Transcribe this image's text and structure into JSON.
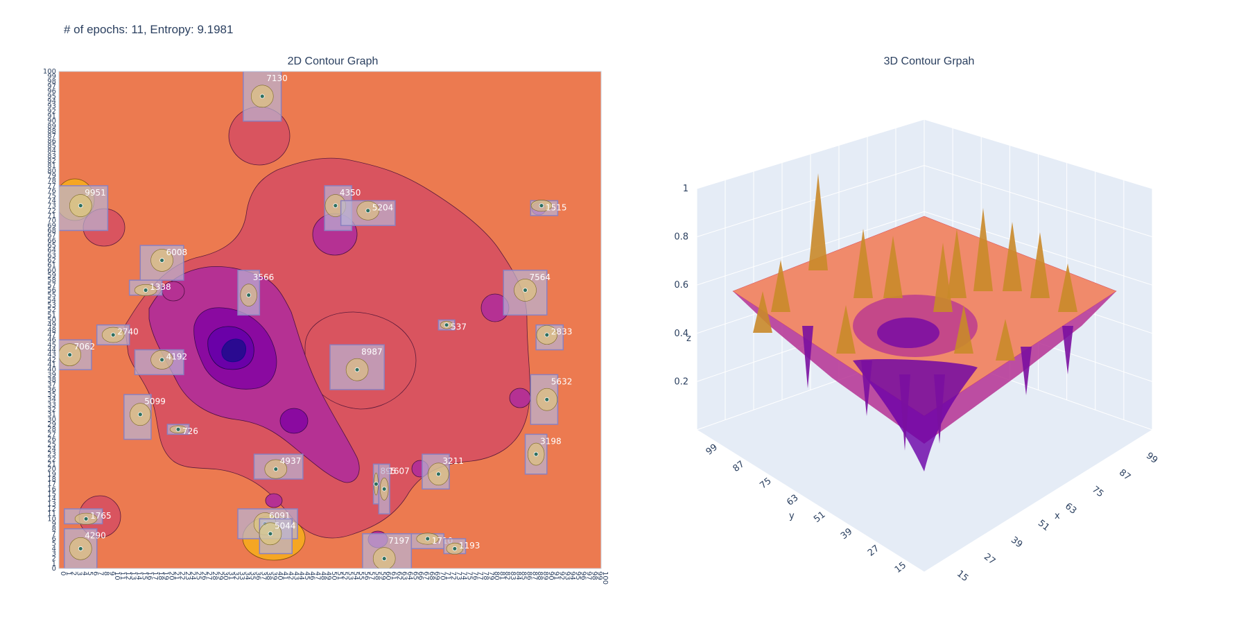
{
  "header": {
    "title": "# of epochs: 11, Entropy: 9.1981"
  },
  "colors": {
    "background": "#ffffff",
    "plot_orange": "#ec7a50",
    "mid_pink": "#d9545f",
    "magenta": "#a9239a",
    "deep_purple": "#6a00a8",
    "navy": "#0d0887",
    "box_fill": "#b9b5d6",
    "box_edge": "#8a80c0",
    "surface_peach": "#f08a6b",
    "scene_bg": "#e5ecf6"
  },
  "chart_data": [
    {
      "type": "heatmap",
      "subtype": "contour",
      "title": "2D Contour Graph",
      "xlim": [
        0,
        100
      ],
      "ylim": [
        0,
        100
      ],
      "x_ticks": [
        0,
        1,
        2,
        3,
        4,
        5,
        6,
        7,
        8,
        9,
        10,
        11,
        12,
        13,
        14,
        15,
        16,
        17,
        18,
        19,
        20,
        21,
        22,
        23,
        24,
        25,
        26,
        27,
        28,
        29,
        30,
        31,
        32,
        33,
        34,
        35,
        36,
        37,
        38,
        39,
        40,
        41,
        42,
        43,
        44,
        45,
        46,
        47,
        48,
        49,
        50,
        51,
        52,
        53,
        54,
        55,
        56,
        57,
        58,
        59,
        60,
        61,
        62,
        63,
        64,
        65,
        66,
        67,
        68,
        69,
        70,
        71,
        72,
        73,
        74,
        75,
        76,
        77,
        78,
        79,
        80,
        81,
        82,
        83,
        84,
        85,
        86,
        87,
        88,
        89,
        90,
        91,
        92,
        93,
        94,
        95,
        96,
        97,
        98,
        99,
        100
      ],
      "y_ticks": [
        0,
        1,
        2,
        3,
        4,
        5,
        6,
        7,
        8,
        9,
        10,
        11,
        12,
        13,
        14,
        15,
        16,
        17,
        18,
        19,
        20,
        21,
        22,
        23,
        24,
        25,
        26,
        27,
        28,
        29,
        30,
        31,
        32,
        33,
        34,
        35,
        36,
        37,
        38,
        39,
        40,
        41,
        42,
        43,
        44,
        45,
        46,
        47,
        48,
        49,
        50,
        51,
        52,
        53,
        54,
        55,
        56,
        57,
        58,
        59,
        60,
        61,
        62,
        63,
        64,
        65,
        66,
        67,
        68,
        69,
        70,
        71,
        72,
        73,
        74,
        75,
        76,
        77,
        78,
        79,
        80,
        81,
        82,
        83,
        84,
        85,
        86,
        87,
        88,
        89,
        90,
        91,
        92,
        93,
        94,
        95,
        96,
        97,
        98,
        99,
        100
      ],
      "boxes": [
        {
          "label": "7130",
          "x0": 34,
          "x1": 41,
          "y0": 90,
          "y1": 100,
          "cx": 37.5,
          "cy": 95
        },
        {
          "label": "9951",
          "x0": 0,
          "x1": 9,
          "y0": 68,
          "y1": 77,
          "cx": 4,
          "cy": 73
        },
        {
          "label": "4350",
          "x0": 49,
          "x1": 54,
          "y0": 68,
          "y1": 77,
          "cx": 51,
          "cy": 73
        },
        {
          "label": "5204",
          "x0": 52,
          "x1": 62,
          "y0": 69,
          "y1": 74,
          "cx": 57,
          "cy": 72
        },
        {
          "label": "1515",
          "x0": 87,
          "x1": 92,
          "y0": 71,
          "y1": 74,
          "cx": 89,
          "cy": 73
        },
        {
          "label": "6008",
          "x0": 15,
          "x1": 23,
          "y0": 58,
          "y1": 65,
          "cx": 19,
          "cy": 62
        },
        {
          "label": "1338",
          "x0": 13,
          "x1": 19,
          "y0": 55,
          "y1": 58,
          "cx": 16,
          "cy": 56
        },
        {
          "label": "3566",
          "x0": 33,
          "x1": 37,
          "y0": 51,
          "y1": 60,
          "cx": 35,
          "cy": 55
        },
        {
          "label": "7564",
          "x0": 82,
          "x1": 90,
          "y0": 51,
          "y1": 60,
          "cx": 86,
          "cy": 56
        },
        {
          "label": "537",
          "x0": 70,
          "x1": 73,
          "y0": 48,
          "y1": 50,
          "cx": 71.5,
          "cy": 49
        },
        {
          "label": "2833",
          "x0": 88,
          "x1": 93,
          "y0": 44,
          "y1": 49,
          "cx": 90,
          "cy": 47
        },
        {
          "label": "2740",
          "x0": 7,
          "x1": 13,
          "y0": 45,
          "y1": 49,
          "cx": 10,
          "cy": 47
        },
        {
          "label": "7062",
          "x0": 0,
          "x1": 6,
          "y0": 40,
          "y1": 46,
          "cx": 2,
          "cy": 43
        },
        {
          "label": "4192",
          "x0": 14,
          "x1": 23,
          "y0": 39,
          "y1": 44,
          "cx": 19,
          "cy": 42
        },
        {
          "label": "8987",
          "x0": 50,
          "x1": 60,
          "y0": 36,
          "y1": 45,
          "cx": 55,
          "cy": 40
        },
        {
          "label": "5632",
          "x0": 87,
          "x1": 92,
          "y0": 29,
          "y1": 39,
          "cx": 90,
          "cy": 34
        },
        {
          "label": "5099",
          "x0": 12,
          "x1": 17,
          "y0": 26,
          "y1": 35,
          "cx": 15,
          "cy": 31
        },
        {
          "label": "726",
          "x0": 20,
          "x1": 24,
          "y0": 27,
          "y1": 29,
          "cx": 22,
          "cy": 28
        },
        {
          "label": "3198",
          "x0": 86,
          "x1": 90,
          "y0": 19,
          "y1": 27,
          "cx": 88,
          "cy": 23
        },
        {
          "label": "4937",
          "x0": 36,
          "x1": 45,
          "y0": 18,
          "y1": 23,
          "cx": 40,
          "cy": 20
        },
        {
          "label": "3211",
          "x0": 67,
          "x1": 72,
          "y0": 16,
          "y1": 23,
          "cx": 70,
          "cy": 19
        },
        {
          "label": "895",
          "x0": 58,
          "x1": 59,
          "y0": 13,
          "y1": 21,
          "cx": 58.5,
          "cy": 17
        },
        {
          "label": "1607",
          "x0": 59,
          "x1": 61,
          "y0": 11,
          "y1": 21,
          "cx": 60,
          "cy": 16
        },
        {
          "label": "1765",
          "x0": 1,
          "x1": 8,
          "y0": 9,
          "y1": 12,
          "cx": 5,
          "cy": 10
        },
        {
          "label": "6091",
          "x0": 33,
          "x1": 44,
          "y0": 6,
          "y1": 12,
          "cx": 38,
          "cy": 9
        },
        {
          "label": "5044",
          "x0": 37,
          "x1": 43,
          "y0": 3,
          "y1": 10,
          "cx": 39,
          "cy": 7
        },
        {
          "label": "4290",
          "x0": 1,
          "x1": 7,
          "y0": 0,
          "y1": 8,
          "cx": 4,
          "cy": 4
        },
        {
          "label": "1710",
          "x0": 65,
          "x1": 71,
          "y0": 4,
          "y1": 7,
          "cx": 68,
          "cy": 6
        },
        {
          "label": "1193",
          "x0": 71,
          "x1": 75,
          "y0": 3,
          "y1": 6,
          "cx": 73,
          "cy": 4
        },
        {
          "label": "7197",
          "x0": 56,
          "x1": 65,
          "y0": 0,
          "y1": 7,
          "cx": 60,
          "cy": 2
        }
      ]
    },
    {
      "type": "surface",
      "title": "3D Contour Grpah",
      "xlabel": "x",
      "ylabel": "y",
      "zlabel": "z",
      "x_ticks": [
        15,
        27,
        39,
        51,
        63,
        75,
        87,
        99
      ],
      "y_ticks": [
        15,
        27,
        39,
        51,
        63,
        75,
        87,
        99
      ],
      "z_ticks": [
        0.2,
        0.4,
        0.6,
        0.8,
        1
      ],
      "zlim": [
        0,
        1
      ]
    }
  ]
}
